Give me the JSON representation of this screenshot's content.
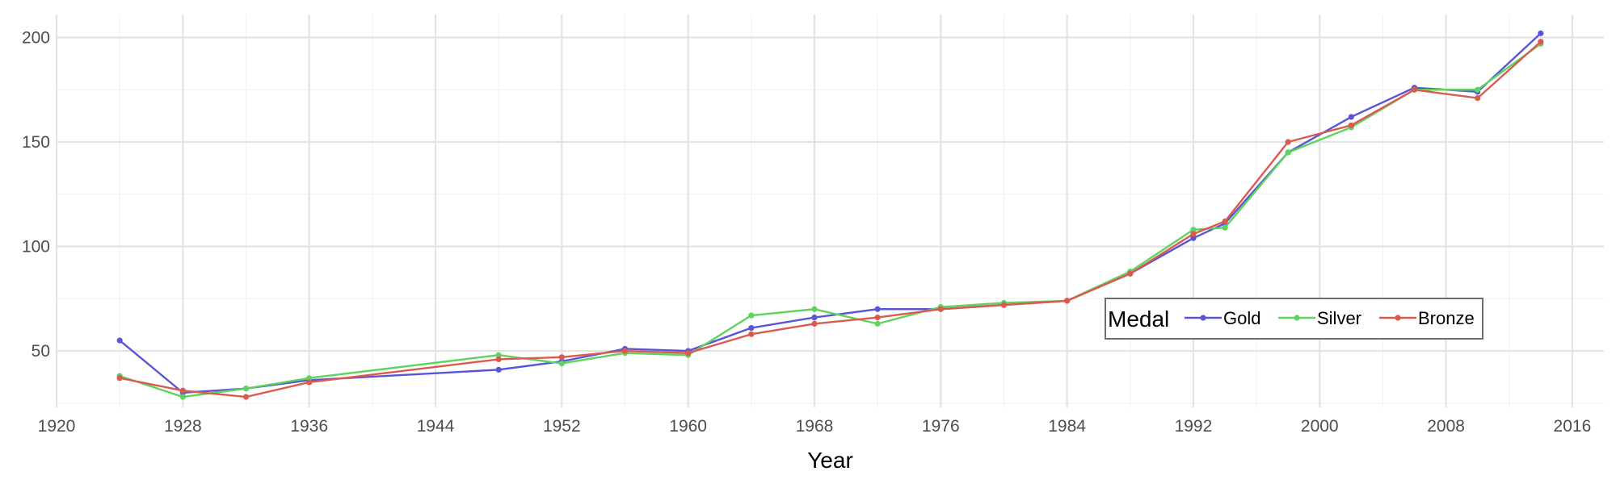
{
  "chart_data": {
    "type": "line",
    "title": "",
    "xlabel": "Year",
    "ylabel": "",
    "xlim": [
      1920,
      2018
    ],
    "ylim": [
      23,
      211
    ],
    "x_ticks": [
      1920,
      1928,
      1936,
      1944,
      1952,
      1960,
      1968,
      1976,
      1984,
      1992,
      2000,
      2008,
      2016
    ],
    "y_ticks": [
      50,
      100,
      150,
      200
    ],
    "grid": true,
    "legend": {
      "title": "Medal",
      "placement": "lower-right",
      "orientation": "horizontal"
    },
    "series": [
      {
        "name": "Gold",
        "color": "#5856D6",
        "points": [
          [
            1924,
            55
          ],
          [
            1928,
            30
          ],
          [
            1932,
            32
          ],
          [
            1936,
            36
          ],
          [
            1948,
            41
          ],
          [
            1952,
            45
          ],
          [
            1956,
            51
          ],
          [
            1960,
            50
          ],
          [
            1964,
            61
          ],
          [
            1968,
            66
          ],
          [
            1972,
            70
          ],
          [
            1976,
            70
          ],
          [
            1980,
            72
          ],
          [
            1984,
            74
          ],
          [
            1988,
            87
          ],
          [
            1992,
            104
          ],
          [
            1994,
            111
          ],
          [
            1998,
            145
          ],
          [
            2002,
            162
          ],
          [
            2006,
            176
          ],
          [
            2010,
            174
          ],
          [
            2014,
            202
          ]
        ]
      },
      {
        "name": "Silver",
        "color": "#5ED45E",
        "points": [
          [
            1924,
            38
          ],
          [
            1928,
            28
          ],
          [
            1932,
            32
          ],
          [
            1936,
            37
          ],
          [
            1948,
            48
          ],
          [
            1952,
            44
          ],
          [
            1956,
            49
          ],
          [
            1960,
            48
          ],
          [
            1964,
            67
          ],
          [
            1968,
            70
          ],
          [
            1972,
            63
          ],
          [
            1976,
            71
          ],
          [
            1980,
            73
          ],
          [
            1984,
            74
          ],
          [
            1988,
            88
          ],
          [
            1992,
            108
          ],
          [
            1994,
            109
          ],
          [
            1998,
            145
          ],
          [
            2002,
            157
          ],
          [
            2006,
            175
          ],
          [
            2010,
            175
          ],
          [
            2014,
            197
          ]
        ]
      },
      {
        "name": "Bronze",
        "color": "#DB5A4F",
        "points": [
          [
            1924,
            37
          ],
          [
            1928,
            31
          ],
          [
            1932,
            28
          ],
          [
            1936,
            35
          ],
          [
            1948,
            46
          ],
          [
            1952,
            47
          ],
          [
            1956,
            50
          ],
          [
            1960,
            49
          ],
          [
            1964,
            58
          ],
          [
            1968,
            63
          ],
          [
            1972,
            66
          ],
          [
            1976,
            70
          ],
          [
            1980,
            72
          ],
          [
            1984,
            74
          ],
          [
            1988,
            87
          ],
          [
            1992,
            106
          ],
          [
            1994,
            112
          ],
          [
            1998,
            150
          ],
          [
            2002,
            158
          ],
          [
            2006,
            175
          ],
          [
            2010,
            171
          ],
          [
            2014,
            198
          ]
        ]
      }
    ]
  }
}
